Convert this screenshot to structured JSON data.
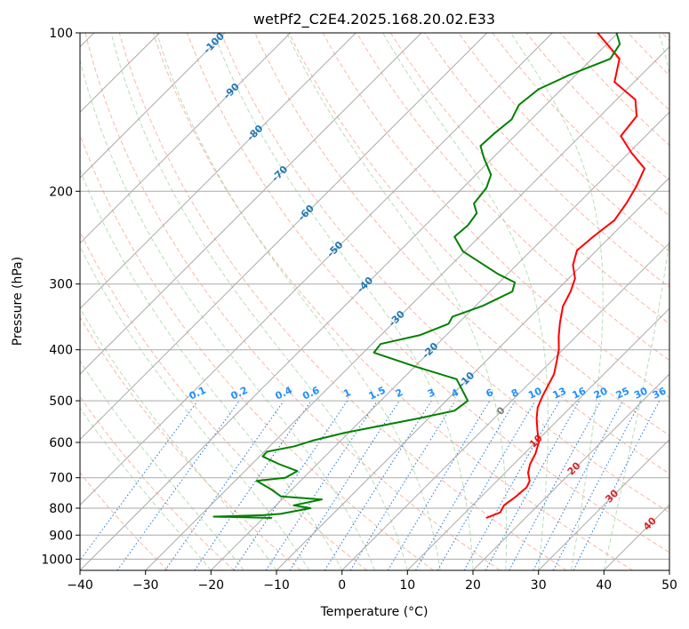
{
  "chart_data": {
    "type": "skew-t",
    "title": "wetPf2_C2E4.2025.168.20.02.E33",
    "xlabel": "Temperature (°C)",
    "ylabel": "Pressure (hPa)",
    "xlim": [
      -40,
      50
    ],
    "ylim": [
      1050,
      100
    ],
    "y_scale": "log",
    "grid": true,
    "x_ticks": [
      "−40",
      "−30",
      "−20",
      "−10",
      "0",
      "10",
      "20",
      "30",
      "40",
      "50"
    ],
    "y_ticks": [
      "100",
      "200",
      "300",
      "400",
      "500",
      "600",
      "700",
      "800",
      "900",
      "1000"
    ],
    "y_tick_values": [
      100,
      200,
      300,
      400,
      500,
      600,
      700,
      800,
      900,
      1000
    ],
    "x_tick_values": [
      -40,
      -30,
      -20,
      -10,
      0,
      10,
      20,
      30,
      40,
      50
    ],
    "isotherm_labels": [
      "-100",
      "-90",
      "-80",
      "-70",
      "-60",
      "-50",
      "-40",
      "-30",
      "-20",
      "-10",
      "0",
      "10",
      "20",
      "30",
      "40"
    ],
    "isotherm_values": [
      -100,
      -90,
      -80,
      -70,
      -60,
      -50,
      -40,
      -30,
      -20,
      -10,
      0,
      10,
      20,
      30,
      40
    ],
    "mixing_ratio_labels": [
      "0.1",
      "0.2",
      "0.4",
      "0.6",
      "1",
      "1.5",
      "2",
      "3",
      "4",
      "6",
      "8",
      "10",
      "13",
      "16",
      "20",
      "25",
      "30",
      "36"
    ],
    "mixing_ratio_values": [
      0.1,
      0.2,
      0.4,
      0.6,
      1,
      1.5,
      2,
      3,
      4,
      6,
      8,
      10,
      13,
      16,
      20,
      25,
      30,
      36
    ],
    "series": [
      {
        "role": "temperature",
        "color": "#ff0000",
        "points": [
          [
            14,
            835
          ],
          [
            15.3,
            815
          ],
          [
            14.8,
            790
          ],
          [
            15.3,
            760
          ],
          [
            15.5,
            730
          ],
          [
            15,
            710
          ],
          [
            13.5,
            685
          ],
          [
            12.5,
            660
          ],
          [
            11.7,
            630
          ],
          [
            10.5,
            600
          ],
          [
            8.5,
            570
          ],
          [
            6.5,
            540
          ],
          [
            5,
            515
          ],
          [
            4,
            490
          ],
          [
            3.3,
            470
          ],
          [
            2.4,
            445
          ],
          [
            0.8,
            420
          ],
          [
            -0.6,
            400
          ],
          [
            -2.6,
            378
          ],
          [
            -4.5,
            356
          ],
          [
            -6.6,
            331
          ],
          [
            -7.7,
            310
          ],
          [
            -9,
            293
          ],
          [
            -11.4,
            276
          ],
          [
            -13,
            259
          ],
          [
            -12.6,
            243
          ],
          [
            -11.9,
            227
          ],
          [
            -12.7,
            210
          ],
          [
            -13.7,
            196
          ],
          [
            -15.2,
            181
          ],
          [
            -19.6,
            169
          ],
          [
            -23.8,
            157
          ],
          [
            -24.4,
            144
          ],
          [
            -27.1,
            134
          ],
          [
            -33,
            124
          ],
          [
            -35.8,
            112
          ],
          [
            -43.1,
            100
          ]
        ]
      },
      {
        "role": "dewpoint",
        "color": "#008000",
        "points": [
          [
            -18.7,
            835
          ],
          [
            -27.8,
            830
          ],
          [
            -20.5,
            825
          ],
          [
            -18,
            820
          ],
          [
            -14.3,
            800
          ],
          [
            -17.3,
            790
          ],
          [
            -13.9,
            770
          ],
          [
            -20.6,
            760
          ],
          [
            -23.4,
            735
          ],
          [
            -26.7,
            710
          ],
          [
            -22.8,
            700
          ],
          [
            -22,
            680
          ],
          [
            -25.8,
            660
          ],
          [
            -29.5,
            638
          ],
          [
            -29.6,
            625
          ],
          [
            -26.2,
            610
          ],
          [
            -24.3,
            595
          ],
          [
            -20.6,
            575
          ],
          [
            -11.5,
            540
          ],
          [
            -7.2,
            522
          ],
          [
            -6.7,
            500
          ],
          [
            -9.2,
            477
          ],
          [
            -11.7,
            455
          ],
          [
            -20.1,
            430
          ],
          [
            -28.4,
            405
          ],
          [
            -28.7,
            390
          ],
          [
            -24,
            375
          ],
          [
            -21.4,
            357
          ],
          [
            -21.9,
            346
          ],
          [
            -18.9,
            330
          ],
          [
            -16.6,
            310
          ],
          [
            -17.6,
            298
          ],
          [
            -21.5,
            287
          ],
          [
            -25,
            276
          ],
          [
            -30.3,
            260
          ],
          [
            -33.8,
            244
          ],
          [
            -33.5,
            232
          ],
          [
            -34,
            220
          ],
          [
            -35.9,
            211
          ],
          [
            -36.4,
            197
          ],
          [
            -37.7,
            186
          ],
          [
            -41.3,
            173
          ],
          [
            -43.7,
            164
          ],
          [
            -43.5,
            155
          ],
          [
            -43,
            146
          ],
          [
            -44.1,
            137
          ],
          [
            -43.5,
            128
          ],
          [
            -40.9,
            120
          ],
          [
            -37.2,
            112
          ],
          [
            -38,
            105
          ],
          [
            -40.2,
            100
          ]
        ]
      }
    ]
  }
}
